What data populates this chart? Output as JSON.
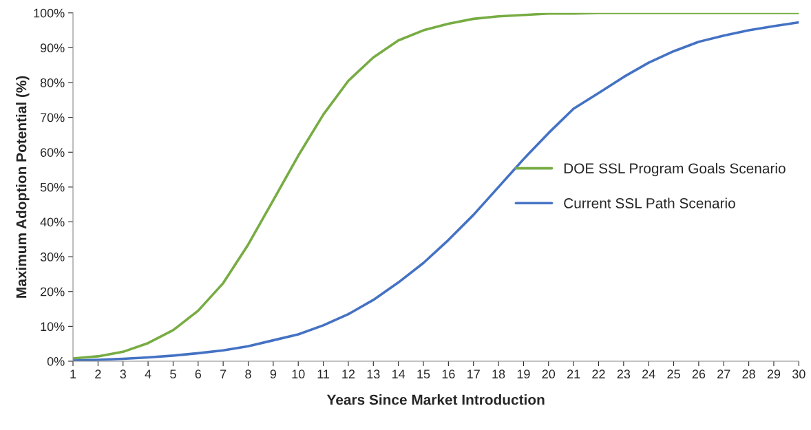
{
  "chart_data": {
    "type": "line",
    "xlabel": "Years Since Market Introduction",
    "ylabel": "Maximum Adoption Potential (%)",
    "x": [
      1,
      2,
      3,
      4,
      5,
      6,
      7,
      8,
      9,
      10,
      11,
      12,
      13,
      14,
      15,
      16,
      17,
      18,
      19,
      20,
      21,
      22,
      23,
      24,
      25,
      26,
      27,
      28,
      29,
      30
    ],
    "series": [
      {
        "name": "DOE SSL Program Goals Scenario",
        "color": "#77ac43",
        "values": [
          0.8,
          1.4,
          2.7,
          5.2,
          8.9,
          14.5,
          22.4,
          33.5,
          46.2,
          59,
          70.8,
          80.5,
          87.2,
          92.1,
          95,
          96.9,
          98.3,
          99,
          99.4,
          99.8,
          99.8,
          100,
          100,
          100,
          100,
          100,
          100,
          100,
          100,
          100
        ]
      },
      {
        "name": "Current SSL Path Scenario",
        "color": "#4472c4",
        "values": [
          0.2,
          0.4,
          0.7,
          1.1,
          1.6,
          2.3,
          3.1,
          4.3,
          6,
          7.7,
          10.3,
          13.5,
          17.6,
          22.6,
          28.2,
          34.8,
          42,
          50,
          58,
          65.5,
          72.5,
          77,
          81.6,
          85.7,
          89,
          91.7,
          93.5,
          95,
          96.2,
          97.3
        ]
      }
    ],
    "xlim": [
      1,
      30
    ],
    "xticks": [
      1,
      2,
      3,
      4,
      5,
      6,
      7,
      8,
      9,
      10,
      11,
      12,
      13,
      14,
      15,
      16,
      17,
      18,
      19,
      20,
      21,
      22,
      23,
      24,
      25,
      26,
      27,
      28,
      29,
      30
    ],
    "ylim": [
      0,
      100
    ],
    "yticks": [
      {
        "value": 0,
        "label": "0%"
      },
      {
        "value": 10,
        "label": "10%"
      },
      {
        "value": 20,
        "label": "20%"
      },
      {
        "value": 30,
        "label": "30%"
      },
      {
        "value": 40,
        "label": "40%"
      },
      {
        "value": 50,
        "label": "50%"
      },
      {
        "value": 60,
        "label": "60%"
      },
      {
        "value": 70,
        "label": "70%"
      },
      {
        "value": 80,
        "label": "80%"
      },
      {
        "value": 90,
        "label": "90%"
      },
      {
        "value": 100,
        "label": "100%"
      }
    ],
    "grid": false,
    "legend": "center right",
    "marker": "none",
    "line_style": "solid"
  }
}
